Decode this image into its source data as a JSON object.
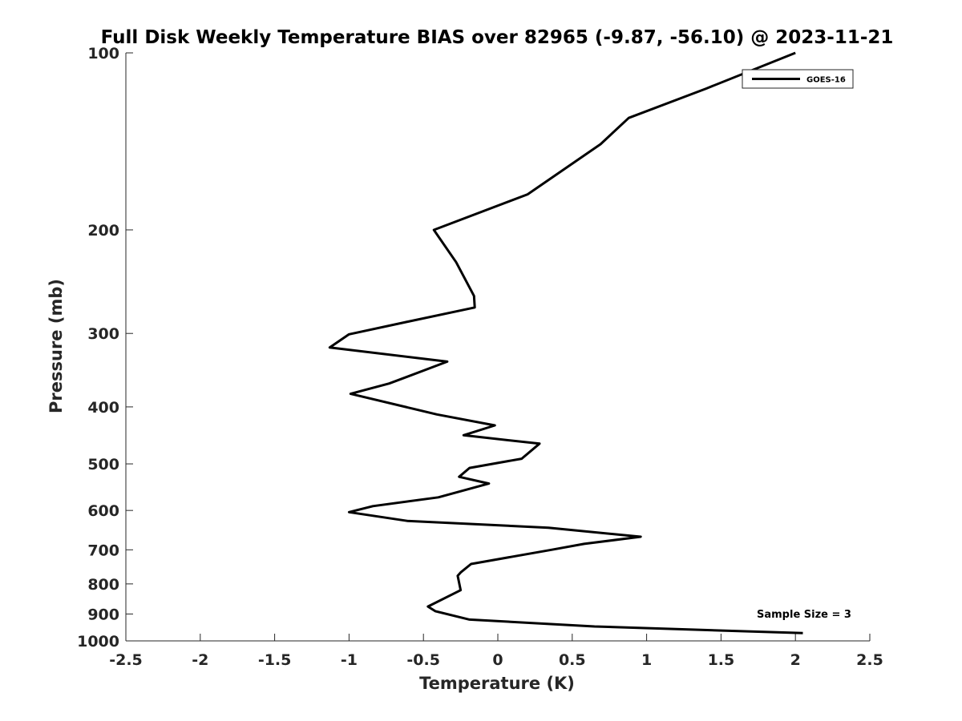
{
  "chart_data": {
    "type": "line",
    "title": "Full Disk Weekly Temperature BIAS over 82965 (-9.87, -56.10) @ 2023-11-21",
    "xlabel": "Temperature (K)",
    "ylabel": "Pressure (mb)",
    "xlim": [
      -2.5,
      2.5
    ],
    "ylim": [
      1000,
      100
    ],
    "yscale": "log",
    "y_reversed": true,
    "grid": false,
    "legend_position": "top-right",
    "x_ticks": [
      -2.5,
      -2,
      -1.5,
      -1,
      -0.5,
      0,
      0.5,
      1,
      1.5,
      2,
      2.5
    ],
    "x_tick_labels": [
      "-2.5",
      "-2",
      "-1.5",
      "-1",
      "-0.5",
      "0",
      "0.5",
      "1",
      "1.5",
      "2",
      "2.5"
    ],
    "y_ticks": [
      100,
      200,
      300,
      400,
      500,
      600,
      700,
      800,
      900,
      1000
    ],
    "y_tick_labels": [
      "100",
      "200",
      "300",
      "400",
      "500",
      "600",
      "700",
      "800",
      "900",
      "1000"
    ],
    "series": [
      {
        "name": "GOES-16",
        "color": "#000000",
        "x": [
          2.0,
          1.4,
          0.88,
          0.69,
          0.2,
          -0.43,
          -0.28,
          -0.16,
          -0.155,
          -0.62,
          -1.0,
          -1.13,
          -0.34,
          -0.73,
          -0.99,
          -0.41,
          -0.02,
          -0.23,
          0.28,
          0.16,
          -0.19,
          -0.26,
          -0.06,
          -0.4,
          -0.84,
          -1.0,
          -0.61,
          0.34,
          0.96,
          0.58,
          0.36,
          -0.18,
          -0.25,
          -0.27,
          -0.25,
          -0.47,
          -0.42,
          -0.19,
          0.65,
          2.05
        ],
        "y": [
          100,
          115,
          129,
          143,
          174,
          200,
          227,
          259,
          271,
          287,
          301,
          317,
          335,
          365,
          380,
          412,
          430,
          447,
          462,
          490,
          508,
          526,
          540,
          570,
          590,
          604,
          625,
          642,
          665,
          684,
          700,
          740,
          765,
          775,
          820,
          874,
          890,
          920,
          945,
          970
        ]
      }
    ],
    "annotations": [
      "Sample Size = 3"
    ]
  }
}
